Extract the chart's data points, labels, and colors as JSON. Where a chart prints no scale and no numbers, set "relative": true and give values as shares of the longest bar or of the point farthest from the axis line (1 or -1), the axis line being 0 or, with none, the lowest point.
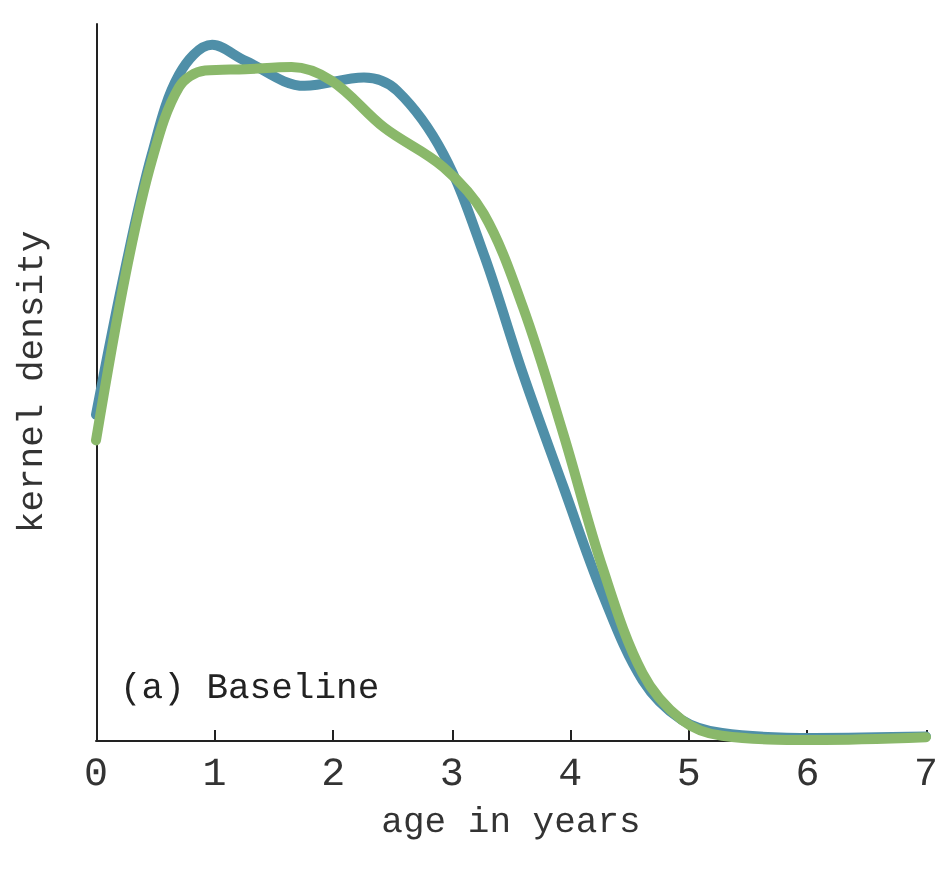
{
  "chart_data": {
    "type": "line",
    "relative": true,
    "xlabel": "age in years",
    "ylabel": "kernel density",
    "annotations": [
      "(a) Baseline"
    ],
    "xlim": [
      0,
      7
    ],
    "xticks": [
      0,
      1,
      2,
      3,
      4,
      5,
      6,
      7
    ],
    "marker": "none",
    "line_style": "solid",
    "series": [
      {
        "color": "#4f8fa8",
        "x": [
          0,
          0.25,
          0.47,
          0.7,
          0.98,
          1.26,
          1.76,
          2.26,
          2.54,
          2.93,
          3.27,
          3.6,
          3.94,
          4.27,
          4.61,
          4.94,
          5.28,
          6.06,
          7
        ],
        "values": [
          0.468,
          0.681,
          0.842,
          0.957,
          1,
          0.977,
          0.941,
          0.953,
          0.934,
          0.843,
          0.699,
          0.527,
          0.365,
          0.211,
          0.086,
          0.029,
          0.01,
          0.003,
          0.005
        ]
      },
      {
        "color": "#8ab86a",
        "x": [
          0,
          0.25,
          0.47,
          0.7,
          0.92,
          1.26,
          1.65,
          1.99,
          2.43,
          2.93,
          3.27,
          3.6,
          3.94,
          4.27,
          4.61,
          4.94,
          5.28,
          6.06,
          7
        ],
        "values": [
          0.431,
          0.67,
          0.833,
          0.939,
          0.963,
          0.965,
          0.968,
          0.948,
          0.881,
          0.824,
          0.757,
          0.623,
          0.441,
          0.249,
          0.096,
          0.029,
          0.006,
          0,
          0.004
        ]
      }
    ]
  }
}
